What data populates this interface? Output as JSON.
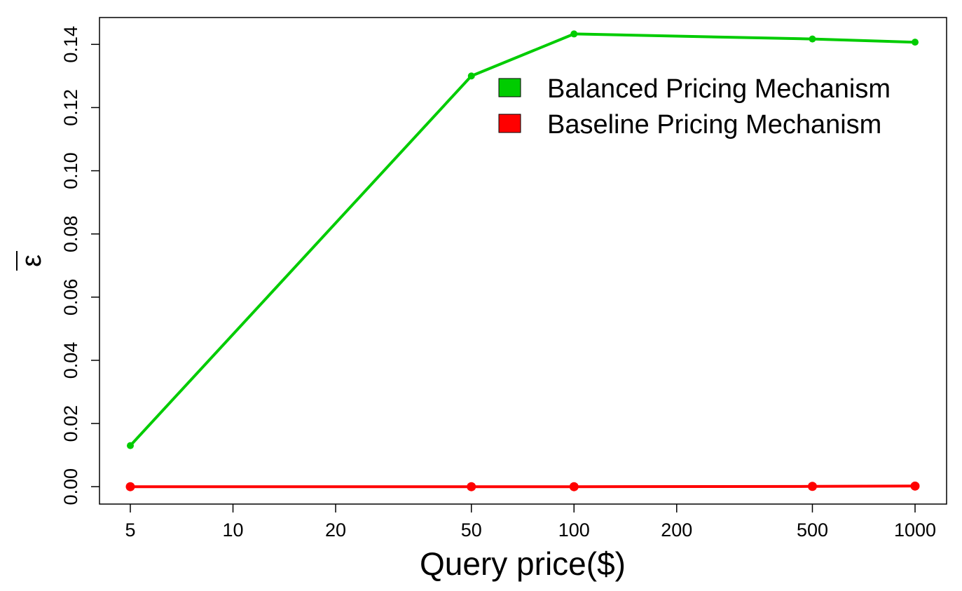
{
  "chart_data": {
    "type": "line",
    "title": "",
    "xlabel": "Query price($)",
    "ylabel": "ε",
    "x_scale": "log",
    "x": [
      5,
      50,
      100,
      500,
      1000
    ],
    "xticks": [
      5,
      10,
      20,
      50,
      100,
      200,
      500,
      1000
    ],
    "xtick_labels": [
      "5",
      "10",
      "20",
      "50",
      "100",
      "200",
      "500",
      "1000"
    ],
    "yticks": [
      0.0,
      0.02,
      0.04,
      0.06,
      0.08,
      0.1,
      0.12,
      0.14
    ],
    "ytick_labels": [
      "0.00",
      "0.02",
      "0.04",
      "0.06",
      "0.08",
      "0.10",
      "0.12",
      "0.14"
    ],
    "ylim": [
      -0.0055,
      0.1485
    ],
    "grid": false,
    "legend_position": "top-right",
    "series": [
      {
        "name": "Balanced Pricing Mechanism",
        "color": "#00cc00",
        "values": [
          0.013,
          0.13,
          0.1433,
          0.1417,
          0.1407
        ]
      },
      {
        "name": "Baseline Pricing Mechanism",
        "color": "#ff0000",
        "values": [
          0.0,
          0.0,
          0.0,
          0.0001,
          0.0002
        ]
      }
    ]
  }
}
